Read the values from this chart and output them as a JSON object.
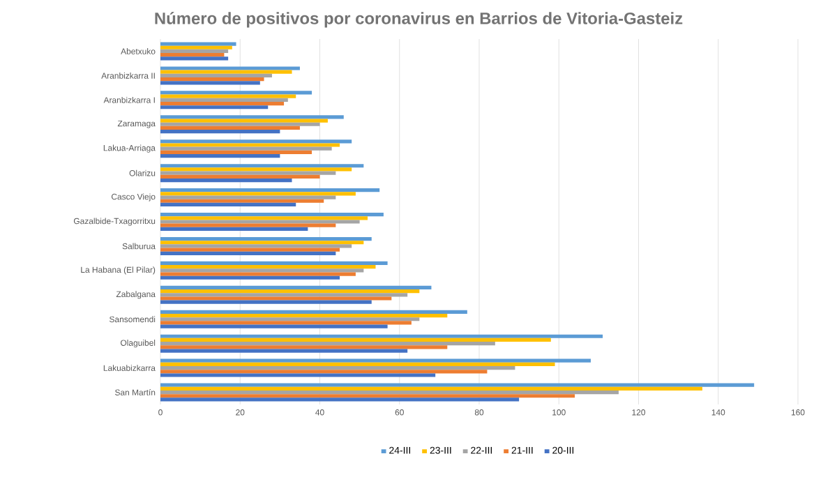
{
  "chart_data": {
    "type": "bar",
    "orientation": "horizontal",
    "title": "Número de positivos por coronavirus en Barrios de Vitoria-Gasteiz",
    "categories": [
      "Abetxuko",
      "Aranbizkarra II",
      "Aranbizkarra I",
      "Zaramaga",
      "Lakua-Arriaga",
      "Olarizu",
      "Casco Viejo",
      "Gazalbide-Txagorritxu",
      "Salburua",
      "La Habana (El Pilar)",
      "Zabalgana",
      "Sansomendi",
      "Olaguibel",
      "Lakuabizkarra",
      "San Martín"
    ],
    "series": [
      {
        "name": "24-III",
        "color": "#5b9bd5",
        "values": [
          19,
          35,
          38,
          46,
          48,
          51,
          55,
          56,
          53,
          57,
          68,
          77,
          111,
          108,
          149
        ]
      },
      {
        "name": "23-III",
        "color": "#ffc000",
        "values": [
          18,
          33,
          34,
          42,
          45,
          48,
          49,
          52,
          51,
          54,
          65,
          72,
          98,
          99,
          136
        ]
      },
      {
        "name": "22-III",
        "color": "#a5a5a5",
        "values": [
          17,
          28,
          32,
          40,
          43,
          44,
          44,
          50,
          48,
          51,
          62,
          65,
          84,
          89,
          115
        ]
      },
      {
        "name": "21-III",
        "color": "#ed7d31",
        "values": [
          16,
          26,
          31,
          35,
          38,
          40,
          41,
          44,
          45,
          49,
          58,
          63,
          72,
          82,
          104
        ]
      },
      {
        "name": "20-III",
        "color": "#4472c4",
        "values": [
          17,
          25,
          27,
          30,
          30,
          33,
          34,
          37,
          44,
          45,
          53,
          57,
          62,
          69,
          90
        ]
      }
    ],
    "xlim": [
      0,
      160
    ],
    "xticks": [
      0,
      20,
      40,
      60,
      80,
      100,
      120,
      140,
      160
    ],
    "grid": "x",
    "legend": "bottom"
  }
}
